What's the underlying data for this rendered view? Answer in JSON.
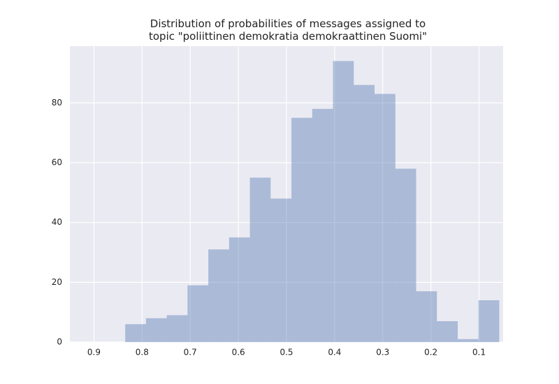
{
  "chart_data": {
    "type": "histogram",
    "title": "Distribution of probabilities of messages assigned to\ntopic \"poliittinen demokratia demokraattinen Suomi\"",
    "bins": [
      0.058,
      0.1012,
      0.1443,
      0.1875,
      0.2307,
      0.2738,
      0.317,
      0.3602,
      0.4034,
      0.4465,
      0.4897,
      0.5329,
      0.576,
      0.6192,
      0.6624,
      0.7056,
      0.7487,
      0.7919,
      0.835
    ],
    "values": [
      14,
      1,
      7,
      17,
      58,
      83,
      86,
      94,
      78,
      75,
      48,
      55,
      35,
      31,
      19,
      9,
      8,
      6
    ],
    "color": "#4c72b0",
    "xlim": [
      0.95,
      0.05
    ],
    "xticks": [
      0.9,
      0.8,
      0.7,
      0.6,
      0.5,
      0.4,
      0.3,
      0.2,
      0.1
    ],
    "ylim": [
      0,
      99
    ],
    "yticks": [
      0,
      20,
      40,
      60,
      80
    ],
    "grid": true
  }
}
